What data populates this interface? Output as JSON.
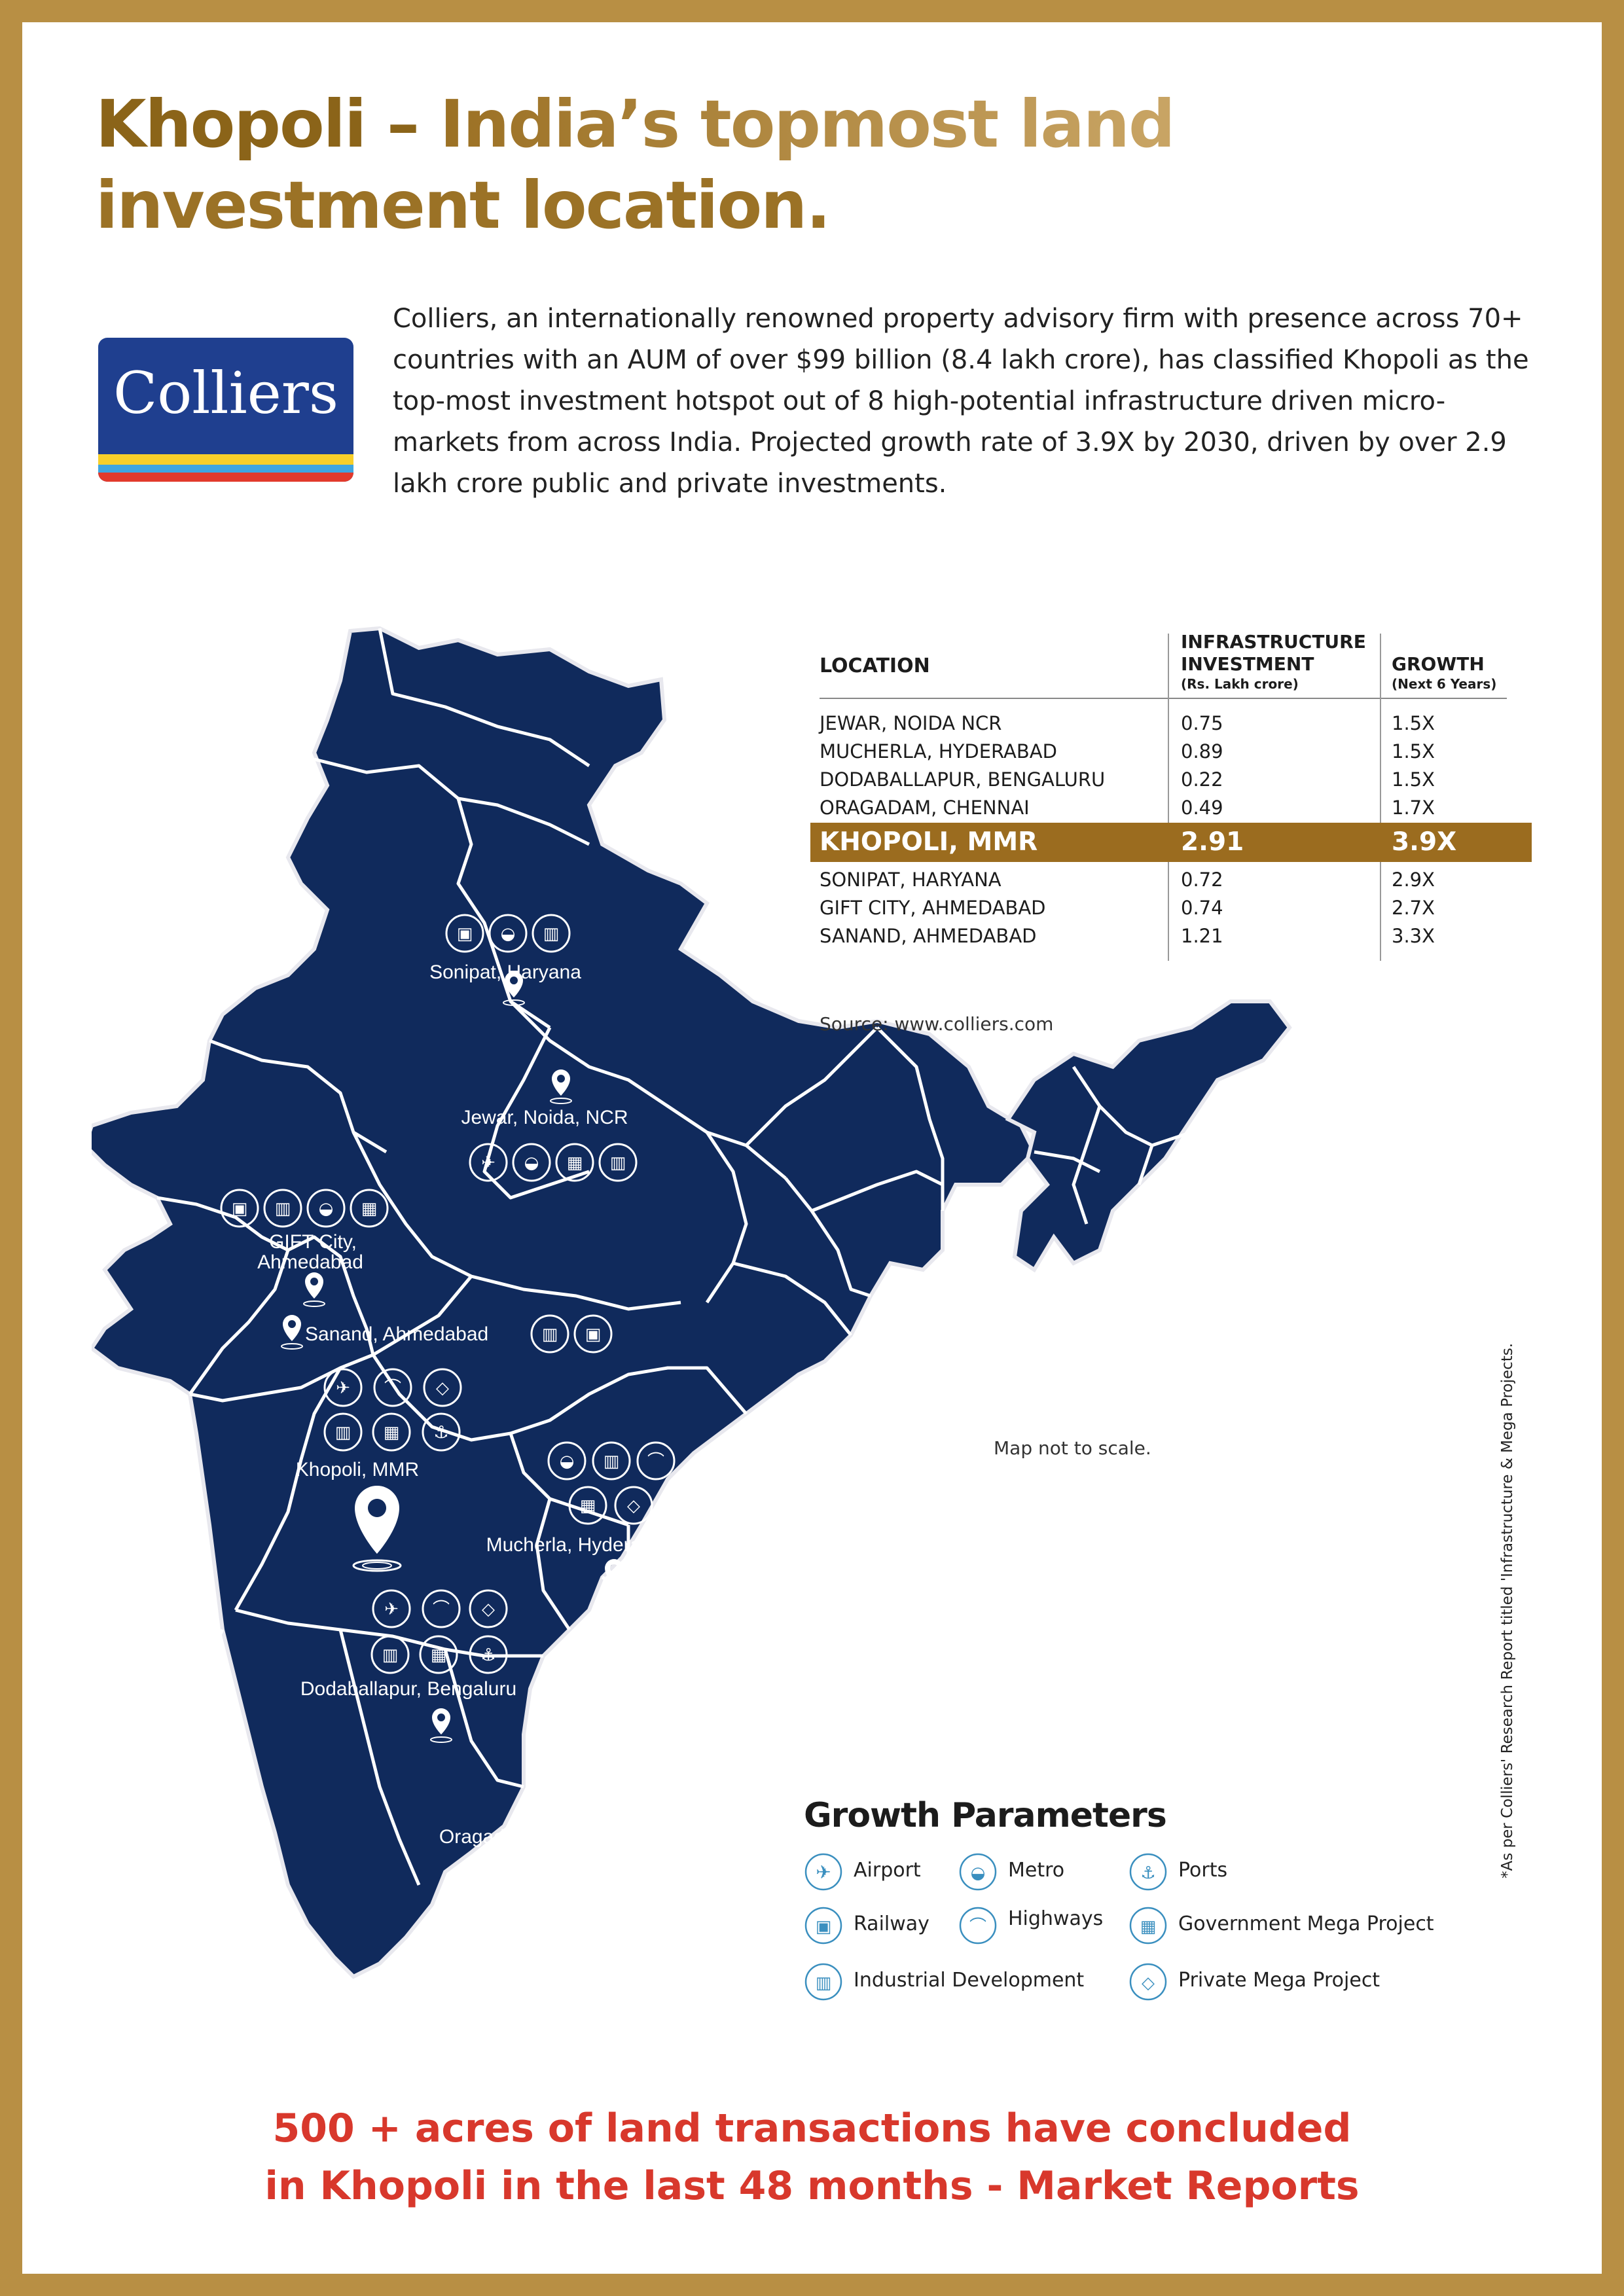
{
  "title": {
    "part1": "Khopoli –",
    "part2": " India’s topmost land",
    "part3": "investment location."
  },
  "logo": {
    "text": "Colliers"
  },
  "intro": "Colliers, an internationally renowned property advisory firm with presence across 70+ countries with an AUM of over $99 billion (8.4 lakh crore), has classified Khopoli as the top-most investment hotspot out of 8 high-potential infrastructure driven micro-markets from across India. Projected growth rate of 3.9X by 2030, driven by over 2.9 lakh crore public and private investments.",
  "table": {
    "h_location": "LOCATION",
    "h_invest_1": "INFRASTRUCTURE",
    "h_invest_2": "INVESTMENT",
    "h_invest_unit": "(Rs. Lakh crore)",
    "h_growth": "GROWTH",
    "h_growth_unit": "(Next 6 Years)",
    "rows": [
      {
        "location": "JEWAR, NOIDA NCR",
        "investment": "0.75",
        "growth": "1.5X"
      },
      {
        "location": "MUCHERLA, HYDERABAD",
        "investment": "0.89",
        "growth": "1.5X"
      },
      {
        "location": "DODABALLAPUR, BENGALURU",
        "investment": "0.22",
        "growth": "1.5X"
      },
      {
        "location": "ORAGADAM, CHENNAI",
        "investment": "0.49",
        "growth": "1.7X"
      },
      {
        "location": "KHOPOLI, MMR",
        "investment": "2.91",
        "growth": "3.9X"
      },
      {
        "location": "SONIPAT, HARYANA",
        "investment": "0.72",
        "growth": "2.9X"
      },
      {
        "location": "GIFT CITY, AHMEDABAD",
        "investment": "0.74",
        "growth": "2.7X"
      },
      {
        "location": "SANAND, AHMEDABAD",
        "investment": "1.21",
        "growth": "3.3X"
      }
    ]
  },
  "source": "Source: www.colliers.com",
  "map_note": "Map not to scale.",
  "side_note": "*As per Colliers' Research Report titled 'Infrastructure & Mega Projects.",
  "map_labels": {
    "sonipat": "Sonipat, Haryana",
    "jewar": "Jewar, Noida, NCR",
    "gift_1": "GIFT City,",
    "gift_2": "Ahmedabad",
    "sanand": "Sanand, Ahmedabad",
    "khopoli": "Khopoli, MMR",
    "mucherla": "Mucherla, Hyderabad",
    "dodaballapur": "Dodaballapur, Bengaluru",
    "oragadam": "Oragadam, Chennai"
  },
  "legend": {
    "title": "Growth Parameters",
    "airport": "Airport",
    "metro": "Metro",
    "ports": "Ports",
    "railway": "Railway",
    "highways": "Highways",
    "gov": "Government Mega Project",
    "industrial": "Industrial Development",
    "private": "Private Mega Project"
  },
  "bottom_line1": "500 + acres of land transactions have concluded",
  "bottom_line2": "in Khopoli in the last 48 months - Market Reports",
  "colors": {
    "gold": "#b88f44",
    "navy": "#102a5c",
    "red": "#d8382c",
    "highlight": "#9b6c1f"
  }
}
